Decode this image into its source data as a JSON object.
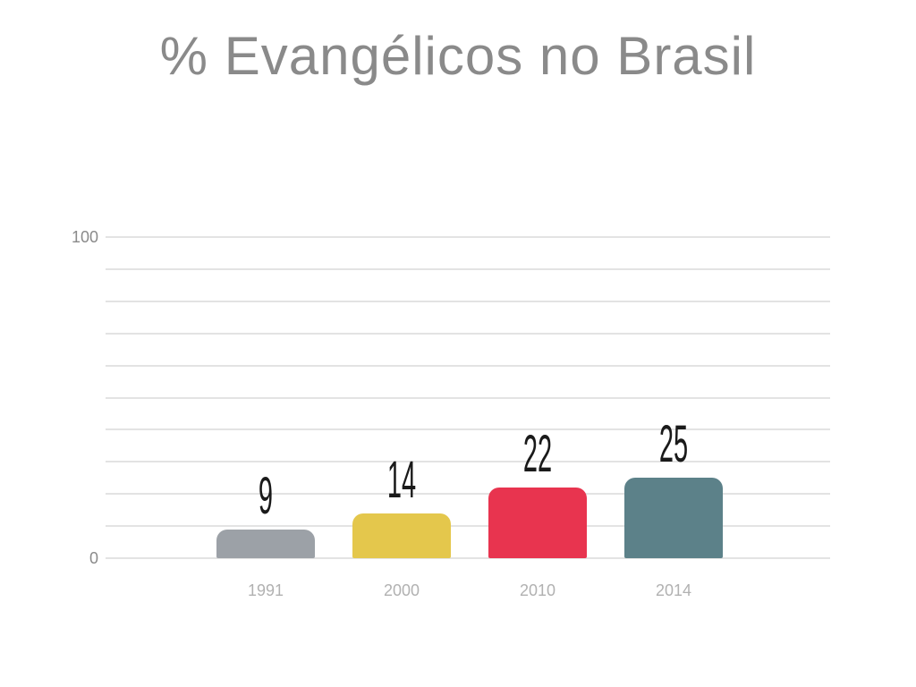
{
  "slide": {
    "title": "% Evangélicos no Brasil"
  },
  "chart_data": {
    "type": "bar",
    "title": "% Evangélicos no Brasil",
    "categories": [
      "1991",
      "2000",
      "2010",
      "2014"
    ],
    "values": [
      9,
      14,
      22,
      25
    ],
    "value_labels": [
      "9",
      "14",
      "22",
      "25"
    ],
    "series": [
      {
        "name": "% Evangélicos",
        "values": [
          9,
          14,
          22,
          25
        ]
      }
    ],
    "bar_colors": [
      "#9CA1A7",
      "#E4C74C",
      "#E8344F",
      "#5C8189"
    ],
    "xlabel": "",
    "ylabel": "",
    "ylim": [
      0,
      100
    ],
    "gridline_step": 10,
    "grid": true,
    "legend": "none",
    "ytick_labels": [
      "100",
      "0"
    ],
    "colors": {
      "background": "#FFFFFF",
      "title_text": "#8A8A8A",
      "ytick_text": "#8A8A8A",
      "category_text": "#B1B1B1",
      "value_label_text": "#1A1A1A",
      "gridline": "#E3E3E3"
    }
  }
}
